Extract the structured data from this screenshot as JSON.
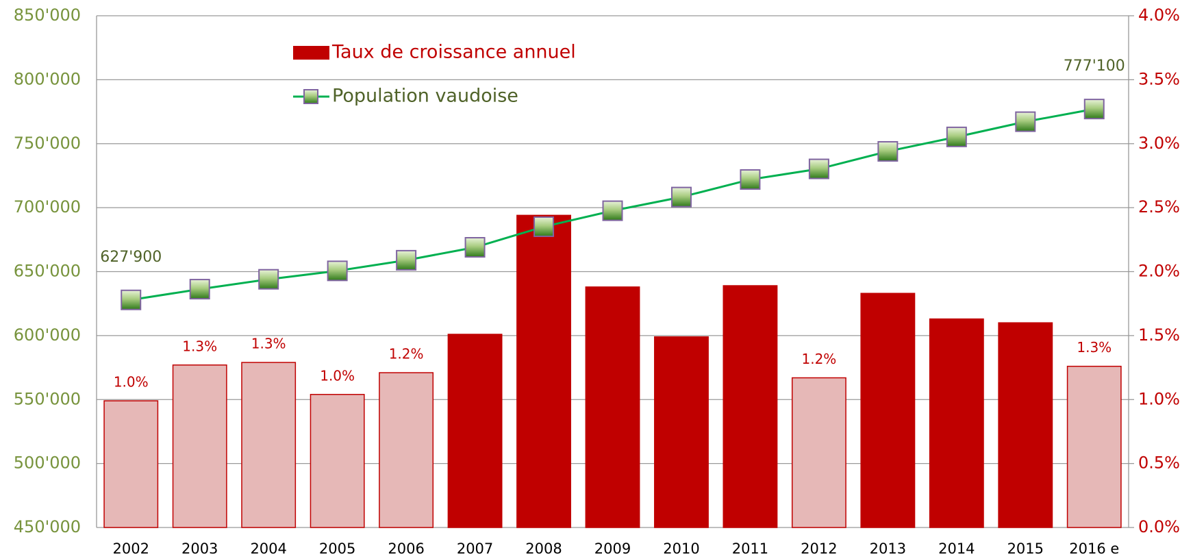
{
  "chart_data": {
    "type": "bar",
    "categories": [
      "2002",
      "2003",
      "2004",
      "2005",
      "2006",
      "2007",
      "2008",
      "2009",
      "2010",
      "2011",
      "2012",
      "2013",
      "2014",
      "2015",
      "2016 e"
    ],
    "series": [
      {
        "name": "Taux de croissance annuel",
        "type": "bar",
        "axis": "y2",
        "color": "#c00000",
        "colors": [
          "#e6b8b7",
          "#e6b8b7",
          "#e6b8b7",
          "#e6b8b7",
          "#e6b8b7",
          "#c00000",
          "#c00000",
          "#c00000",
          "#c00000",
          "#c00000",
          "#e6b8b7",
          "#c00000",
          "#c00000",
          "#c00000",
          "#e6b8b7"
        ],
        "values": [
          0.99,
          1.27,
          1.29,
          1.04,
          1.21,
          1.51,
          2.44,
          1.88,
          1.49,
          1.89,
          1.17,
          1.83,
          1.63,
          1.6,
          1.26
        ],
        "value_labels": [
          "1.0%",
          "1.3%",
          "1.3%",
          "1.0%",
          "1.2%",
          null,
          null,
          null,
          null,
          null,
          "1.2%",
          null,
          null,
          null,
          "1.3%"
        ]
      },
      {
        "name": "Population vaudoise",
        "type": "line",
        "axis": "y",
        "color": "#00b050",
        "marker_color": "#4f8a2a",
        "marker_edge": "#7f64a0",
        "values": [
          627900,
          636300,
          644000,
          650600,
          658900,
          669000,
          685100,
          697600,
          708300,
          722000,
          730300,
          744000,
          755300,
          767200,
          777100
        ],
        "value_labels": [
          "627'900",
          null,
          null,
          null,
          null,
          null,
          null,
          null,
          null,
          null,
          null,
          null,
          null,
          null,
          "777'100"
        ]
      }
    ],
    "ylim": [
      450000,
      850000
    ],
    "yticks": [
      {
        "value": 450000,
        "label": "450'000"
      },
      {
        "value": 500000,
        "label": "500'000"
      },
      {
        "value": 550000,
        "label": "550'000"
      },
      {
        "value": 600000,
        "label": "600'000"
      },
      {
        "value": 650000,
        "label": "650'000"
      },
      {
        "value": 700000,
        "label": "700'000"
      },
      {
        "value": 750000,
        "label": "750'000"
      },
      {
        "value": 800000,
        "label": "800'000"
      },
      {
        "value": 850000,
        "label": "850'000"
      }
    ],
    "y2lim": [
      0,
      4
    ],
    "y2ticks": [
      {
        "value": 0,
        "label": "0.0%"
      },
      {
        "value": 0.5,
        "label": "0.5%"
      },
      {
        "value": 1,
        "label": "1.0%"
      },
      {
        "value": 1.5,
        "label": "1.5%"
      },
      {
        "value": 2,
        "label": "2.0%"
      },
      {
        "value": 2.5,
        "label": "2.5%"
      },
      {
        "value": 3,
        "label": "3.0%"
      },
      {
        "value": 3.5,
        "label": "3.5%"
      },
      {
        "value": 4,
        "label": "4.0%"
      }
    ],
    "y_color": "#77933c",
    "y2_color": "#c00000",
    "grid": true
  }
}
